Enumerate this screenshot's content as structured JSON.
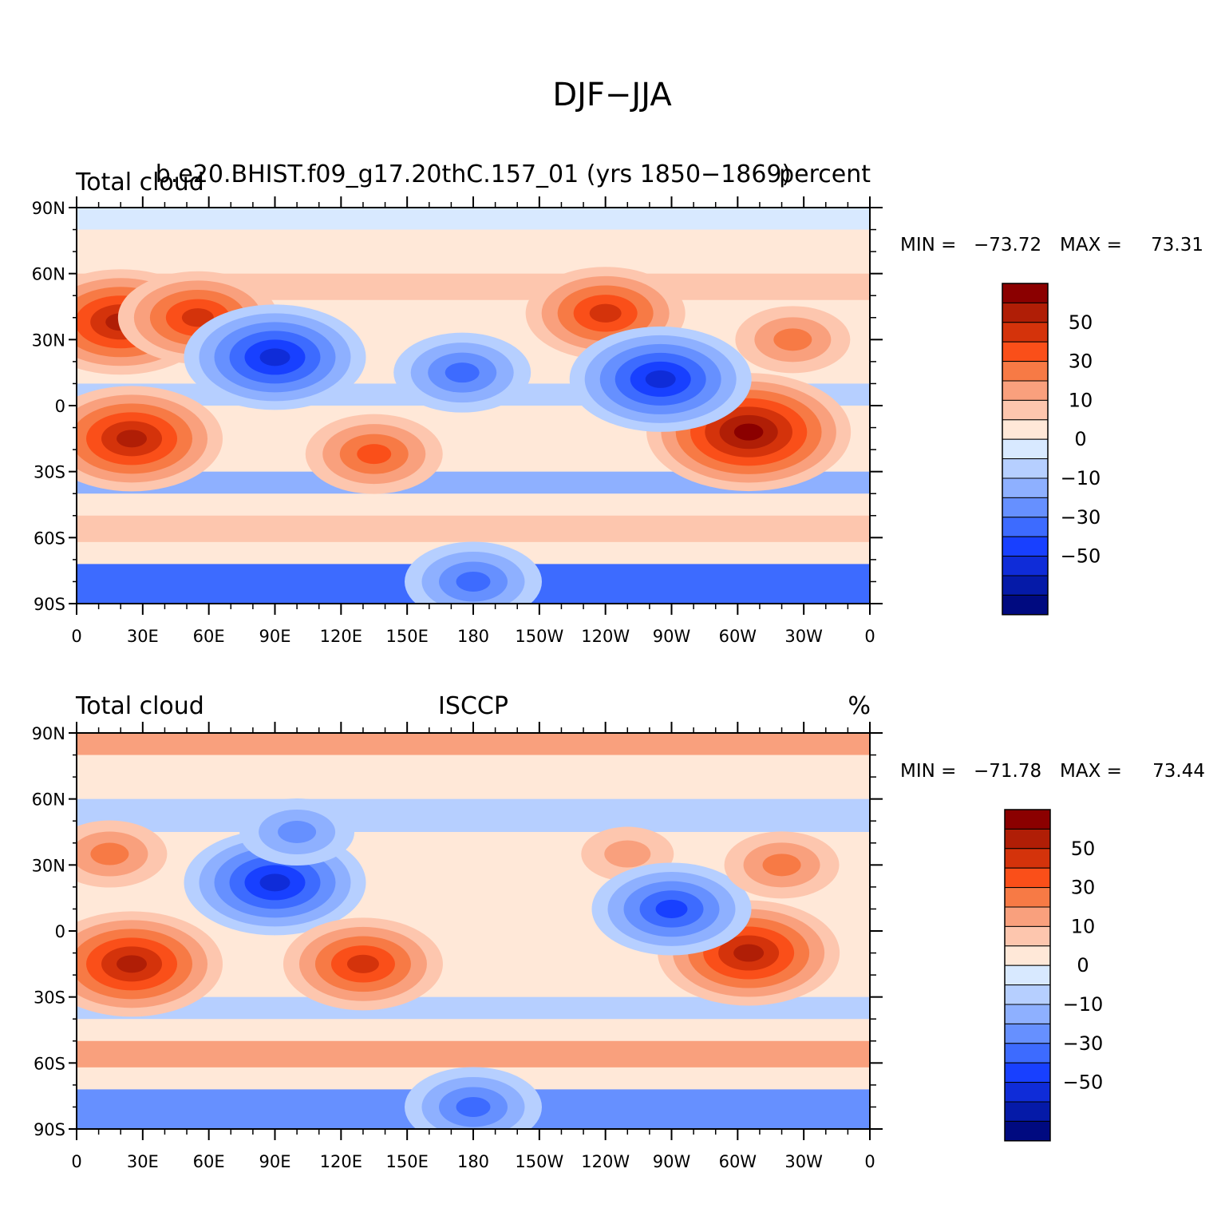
{
  "figure_title": "DJF−JJA",
  "panels": [
    {
      "left_label": "Total cloud",
      "center_label": "b.e20.BHIST.f09_g17.20thC.157_01 (yrs 1850−1869)",
      "right_label": "percent",
      "stats": {
        "min_label": "MIN =",
        "min": "−73.72",
        "max_label": "MAX =",
        "max": "73.31"
      }
    },
    {
      "left_label": "Total cloud",
      "center_label": "ISCCP",
      "right_label": "%",
      "stats": {
        "min_label": "MIN =",
        "min": "−71.78",
        "max_label": "MAX =",
        "max": "73.44"
      }
    }
  ],
  "lat_labels": [
    "90N",
    "60N",
    "30N",
    "0",
    "30S",
    "60S",
    "90S"
  ],
  "lon_labels": [
    "0",
    "30E",
    "60E",
    "90E",
    "120E",
    "150E",
    "180",
    "150W",
    "120W",
    "90W",
    "60W",
    "30W",
    "0"
  ],
  "colorbar": {
    "colors_top_to_bottom": [
      "#8b0000",
      "#b01e06",
      "#d4330b",
      "#fa4f19",
      "#f77a45",
      "#f9a07d",
      "#fdc6ae",
      "#ffe8d8",
      "#d8e9ff",
      "#b6cfff",
      "#8eb0ff",
      "#6690ff",
      "#3d6bff",
      "#1840ff",
      "#0f2cd8",
      "#051aa8",
      "#000a80"
    ],
    "tick_labels": [
      "50",
      "30",
      "10",
      "0",
      "−10",
      "−30",
      "−50"
    ]
  },
  "chart_data": {
    "type": "heatmap",
    "title": "DJF−JJA",
    "xlim": [
      0,
      360
    ],
    "ylim": [
      -90,
      90
    ],
    "grid": false,
    "legend": "colorbar-right",
    "maps": [
      {
        "name": "b.e20.BHIST.f09_g17.20thC.157_01 (yrs 1850−1869)",
        "units": "percent",
        "min": -73.72,
        "max": 73.31,
        "features": [
          {
            "lon": 20,
            "lat": 38,
            "value": 55
          },
          {
            "lon": 55,
            "lat": 40,
            "value": 50
          },
          {
            "lon": 90,
            "lat": 22,
            "value": -55
          },
          {
            "lon": 25,
            "lat": -15,
            "value": 60
          },
          {
            "lon": 135,
            "lat": -22,
            "value": 35
          },
          {
            "lon": 305,
            "lat": -12,
            "value": 65
          },
          {
            "lon": 240,
            "lat": 42,
            "value": 50
          },
          {
            "lon": 265,
            "lat": 12,
            "value": -55
          },
          {
            "lon": 175,
            "lat": 15,
            "value": -35
          },
          {
            "lon": 325,
            "lat": 30,
            "value": 30
          },
          {
            "lon": 180,
            "lat": -80,
            "value": -40
          }
        ]
      },
      {
        "name": "ISCCP",
        "units": "%",
        "min": -71.78,
        "max": 73.44,
        "features": [
          {
            "lon": 15,
            "lat": 35,
            "value": 30
          },
          {
            "lon": 90,
            "lat": 22,
            "value": -60
          },
          {
            "lon": 100,
            "lat": 45,
            "value": -30
          },
          {
            "lon": 25,
            "lat": -15,
            "value": 60
          },
          {
            "lon": 130,
            "lat": -15,
            "value": 45
          },
          {
            "lon": 305,
            "lat": -10,
            "value": 55
          },
          {
            "lon": 250,
            "lat": 35,
            "value": 20
          },
          {
            "lon": 270,
            "lat": 10,
            "value": -45
          },
          {
            "lon": 320,
            "lat": 30,
            "value": 30
          },
          {
            "lon": 180,
            "lat": -80,
            "value": -40
          }
        ]
      }
    ]
  }
}
